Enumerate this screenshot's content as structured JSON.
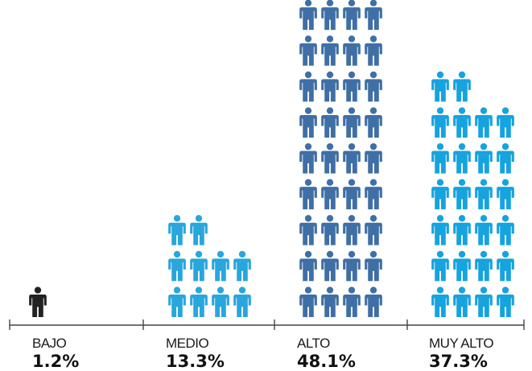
{
  "chart_data": {
    "type": "bar",
    "categories": [
      "BAJO",
      "MEDIO",
      "ALTO",
      "MUY ALTO"
    ],
    "values": [
      1.2,
      13.3,
      48.1,
      37.3
    ],
    "value_labels": [
      "1.2%",
      "13.3%",
      "48.1%",
      "37.3%"
    ],
    "icon_counts": [
      1,
      10,
      36,
      26
    ],
    "icons_per_row": 4,
    "colors": [
      "#222222",
      "#29a6dc",
      "#3f6fa5",
      "#16a3de"
    ],
    "icon": "person-icon",
    "title": "",
    "xlabel": "",
    "ylabel": ""
  }
}
